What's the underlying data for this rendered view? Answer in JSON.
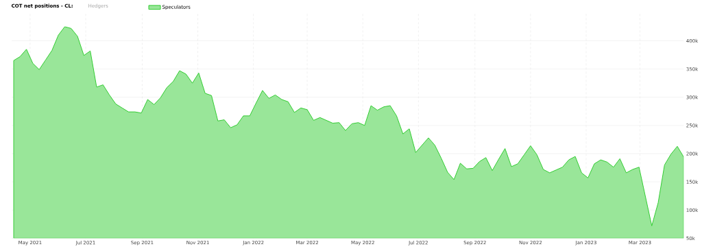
{
  "chart_data": {
    "type": "area",
    "title": "COT net positions - CL:",
    "annotations": [
      "Hedgers"
    ],
    "x": [
      "2021-04-13",
      "2021-04-20",
      "2021-04-27",
      "2021-05-04",
      "2021-05-11",
      "2021-05-18",
      "2021-05-25",
      "2021-06-01",
      "2021-06-08",
      "2021-06-15",
      "2021-06-22",
      "2021-06-29",
      "2021-07-06",
      "2021-07-13",
      "2021-07-20",
      "2021-07-27",
      "2021-08-03",
      "2021-08-10",
      "2021-08-17",
      "2021-08-24",
      "2021-08-31",
      "2021-09-07",
      "2021-09-14",
      "2021-09-21",
      "2021-09-28",
      "2021-10-05",
      "2021-10-12",
      "2021-10-19",
      "2021-10-26",
      "2021-11-02",
      "2021-11-09",
      "2021-11-16",
      "2021-11-23",
      "2021-11-30",
      "2021-12-07",
      "2021-12-14",
      "2021-12-21",
      "2021-12-28",
      "2022-01-04",
      "2022-01-11",
      "2022-01-18",
      "2022-01-25",
      "2022-02-01",
      "2022-02-08",
      "2022-02-15",
      "2022-02-22",
      "2022-03-01",
      "2022-03-08",
      "2022-03-15",
      "2022-03-22",
      "2022-03-29",
      "2022-04-05",
      "2022-04-12",
      "2022-04-19",
      "2022-04-26",
      "2022-05-03",
      "2022-05-10",
      "2022-05-17",
      "2022-05-24",
      "2022-05-31",
      "2022-06-07",
      "2022-06-14",
      "2022-06-21",
      "2022-06-28",
      "2022-07-05",
      "2022-07-12",
      "2022-07-19",
      "2022-07-26",
      "2022-08-02",
      "2022-08-09",
      "2022-08-16",
      "2022-08-23",
      "2022-08-30",
      "2022-09-06",
      "2022-09-13",
      "2022-09-20",
      "2022-09-27",
      "2022-10-04",
      "2022-10-11",
      "2022-10-18",
      "2022-10-25",
      "2022-11-01",
      "2022-11-08",
      "2022-11-15",
      "2022-11-22",
      "2022-11-29",
      "2022-12-06",
      "2022-12-13",
      "2022-12-20",
      "2022-12-27",
      "2023-01-03",
      "2023-01-10",
      "2023-01-17",
      "2023-01-24",
      "2023-01-31",
      "2023-02-07",
      "2023-02-14",
      "2023-02-21",
      "2023-02-28",
      "2023-03-07",
      "2023-03-14",
      "2023-03-21",
      "2023-03-28",
      "2023-04-04",
      "2023-04-11",
      "2023-04-18"
    ],
    "series": [
      {
        "name": "Speculators",
        "color": "#33cc33",
        "values": [
          365000,
          372000,
          385000,
          360000,
          349000,
          366000,
          383000,
          410000,
          425000,
          422000,
          408000,
          374000,
          382000,
          318000,
          322000,
          304000,
          288000,
          281000,
          274000,
          274000,
          272000,
          296000,
          287000,
          299000,
          317000,
          328000,
          347000,
          341000,
          325000,
          343000,
          307000,
          303000,
          258000,
          260000,
          246000,
          251000,
          267000,
          267000,
          290000,
          312000,
          298000,
          304000,
          296000,
          292000,
          273000,
          281000,
          278000,
          259000,
          264000,
          259000,
          254000,
          255000,
          241000,
          253000,
          255000,
          250000,
          285000,
          277000,
          283000,
          285000,
          267000,
          235000,
          244000,
          202000,
          215000,
          228000,
          215000,
          192000,
          167000,
          154000,
          183000,
          173000,
          174000,
          186000,
          193000,
          170000,
          190000,
          209000,
          177000,
          182000,
          198000,
          214000,
          198000,
          172000,
          166000,
          171000,
          176000,
          189000,
          195000,
          166000,
          157000,
          182000,
          189000,
          185000,
          176000,
          191000,
          166000,
          172000,
          176000,
          124000,
          72000,
          113000,
          180000,
          199000,
          213000,
          194000
        ]
      }
    ],
    "xlim": [
      "2021-04-11",
      "2023-04-18"
    ],
    "xticks": [
      {
        "value": "2021-05-01",
        "label": "May 2021"
      },
      {
        "value": "2021-07-01",
        "label": "Jul 2021"
      },
      {
        "value": "2021-09-01",
        "label": "Sep 2021"
      },
      {
        "value": "2021-11-01",
        "label": "Nov 2021"
      },
      {
        "value": "2022-01-01",
        "label": "Jan 2022"
      },
      {
        "value": "2022-03-01",
        "label": "Mar 2022"
      },
      {
        "value": "2022-05-01",
        "label": "May 2022"
      },
      {
        "value": "2022-07-01",
        "label": "Jul 2022"
      },
      {
        "value": "2022-09-01",
        "label": "Sep 2022"
      },
      {
        "value": "2022-11-01",
        "label": "Nov 2022"
      },
      {
        "value": "2023-01-01",
        "label": "Jan 2023"
      },
      {
        "value": "2023-03-01",
        "label": "Mar 2023"
      }
    ],
    "ylim": [
      50000,
      450000
    ],
    "yticks": [
      {
        "value": 50000,
        "label": "50k"
      },
      {
        "value": 100000,
        "label": "100k"
      },
      {
        "value": 150000,
        "label": "150k"
      },
      {
        "value": 200000,
        "label": "200k"
      },
      {
        "value": 250000,
        "label": "250k"
      },
      {
        "value": 300000,
        "label": "300k"
      },
      {
        "value": 350000,
        "label": "350k"
      },
      {
        "value": 400000,
        "label": "400k"
      }
    ],
    "grid": true,
    "legend": "top left"
  }
}
